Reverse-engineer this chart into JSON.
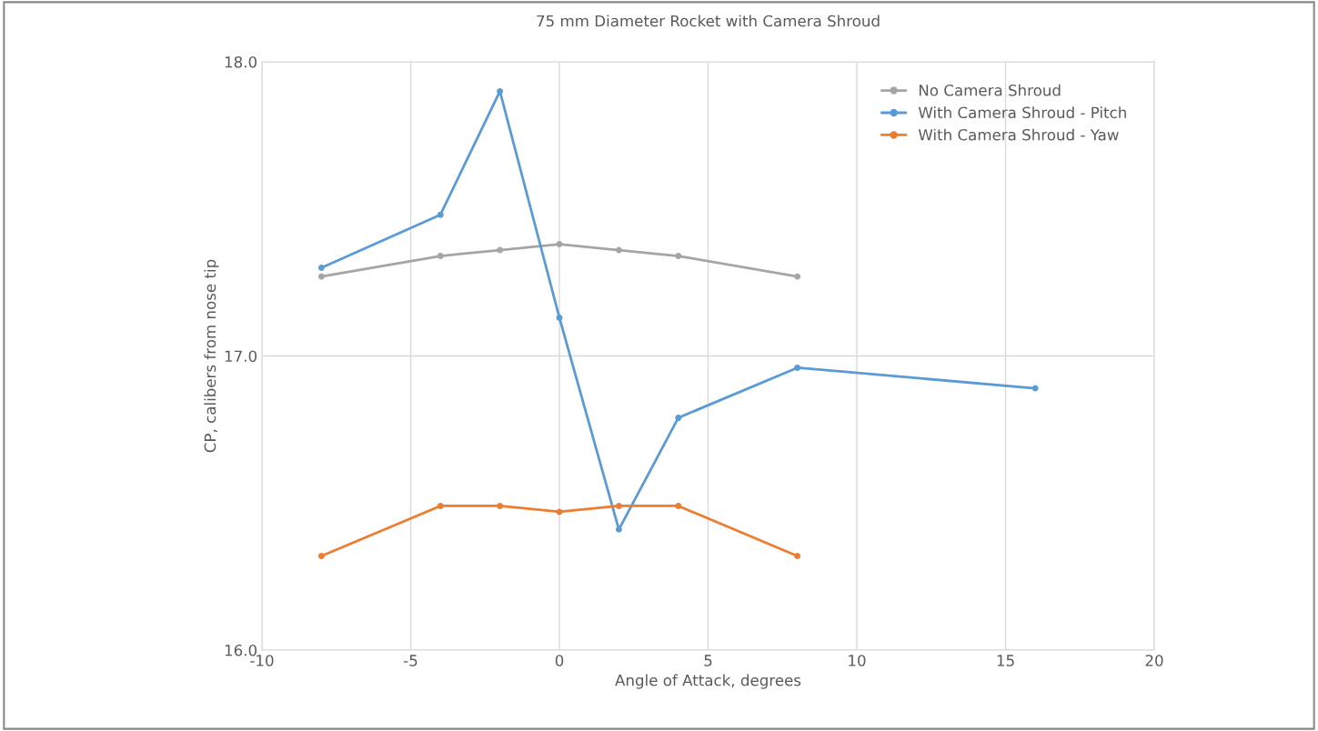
{
  "chart_data": {
    "type": "line",
    "title": "75 mm Diameter Rocket with Camera Shroud",
    "xlabel": "Angle of Attack, degrees",
    "ylabel": "CP, calibers from nose tip",
    "series": [
      {
        "name": "No Camera Shroud",
        "color": "#a5a5a5",
        "x": [
          -8,
          -4,
          -2,
          0,
          2,
          4,
          8
        ],
        "values": [
          17.27,
          17.34,
          17.36,
          17.38,
          17.36,
          17.34,
          17.27
        ]
      },
      {
        "name": "With Camera Shroud - Pitch",
        "color": "#5b9bd5",
        "x": [
          -8,
          -4,
          -2,
          0,
          2,
          4,
          8,
          16
        ],
        "values": [
          17.3,
          17.48,
          17.9,
          17.13,
          16.41,
          16.79,
          16.96,
          16.89
        ]
      },
      {
        "name": "With Camera Shroud - Yaw",
        "color": "#ed7d31",
        "x": [
          -8,
          -4,
          -2,
          0,
          2,
          4,
          8
        ],
        "values": [
          16.32,
          16.49,
          16.49,
          16.47,
          16.49,
          16.49,
          16.32
        ]
      }
    ],
    "xlim": [
      -10,
      20
    ],
    "xticks": [
      -10,
      -5,
      0,
      5,
      10,
      15,
      20
    ],
    "ylim": [
      16.0,
      18.0
    ],
    "yticks": [
      {
        "value": 16.0,
        "label": "16.0"
      },
      {
        "value": 17.0,
        "label": "17.0"
      },
      {
        "value": 18.0,
        "label": "18.0"
      }
    ],
    "grid": true,
    "legend": "top right",
    "marker": "circle",
    "line_style": "solid"
  }
}
